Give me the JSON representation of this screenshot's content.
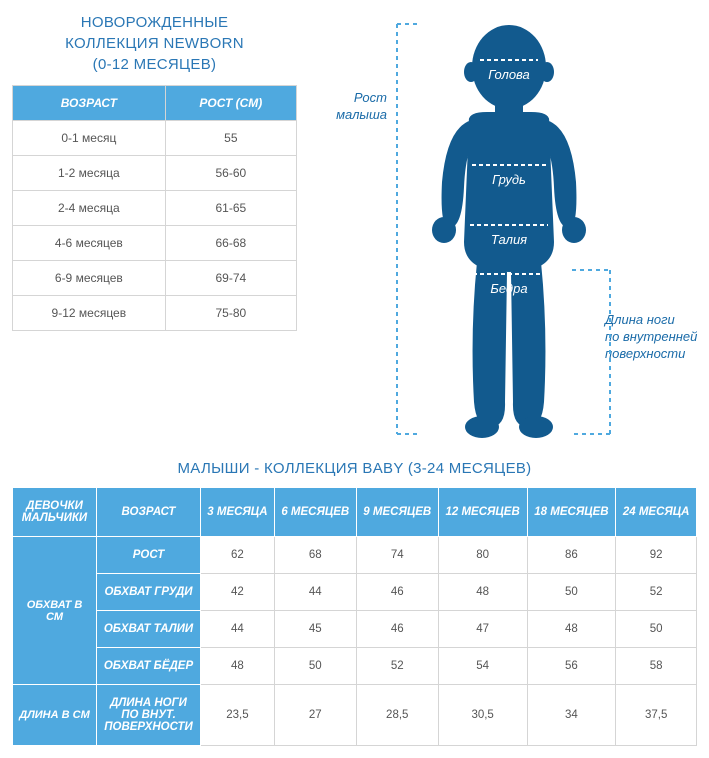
{
  "colors": {
    "accent": "#4fa9df",
    "heading": "#2a77b5",
    "baby_fill": "#125a8e",
    "dash": "#4fa9df",
    "border": "#d5d5d5",
    "text": "#555555"
  },
  "newborn": {
    "title_line1": "НОВОРОЖДЕННЫЕ",
    "title_line2": "КОЛЛЕКЦИЯ NEWBORN",
    "title_line3": "(0-12 МЕСЯЦЕВ)",
    "columns": {
      "age": "ВОЗРАСТ",
      "height": "РОСТ (СМ)"
    },
    "rows": [
      {
        "age": "0-1 месяц",
        "height": "55"
      },
      {
        "age": "1-2 месяца",
        "height": "56-60"
      },
      {
        "age": "2-4 месяца",
        "height": "61-65"
      },
      {
        "age": "4-6 месяцев",
        "height": "66-68"
      },
      {
        "age": "6-9 месяцев",
        "height": "69-74"
      },
      {
        "age": "9-12 месяцев",
        "height": "75-80"
      }
    ]
  },
  "diagram": {
    "height_label_l1": "Рост",
    "height_label_l2": "малыша",
    "leg_label_l1": "Длина ноги",
    "leg_label_l2": "по внутренней",
    "leg_label_l3": "поверхности",
    "head": "Голова",
    "chest": "Грудь",
    "waist": "Талия",
    "hips": "Бедра"
  },
  "baby": {
    "title": "МАЛЫШИ - КОЛЛЕКЦИЯ BABY (3-24 МЕСЯЦЕВ)",
    "corner_l1": "ДЕВОЧКИ",
    "corner_l2": "МАЛЬЧИКИ",
    "age_header": "ВОЗРАСТ",
    "age_columns": [
      "3 МЕСЯЦА",
      "6 МЕСЯЦЕВ",
      "9 МЕСЯЦЕВ",
      "12 МЕСЯЦЕВ",
      "18 МЕСЯЦЕВ",
      "24 МЕСЯЦА"
    ],
    "group1_label": "ОБХВАТ В СМ",
    "group1_rows": [
      {
        "label": "РОСТ",
        "values": [
          "62",
          "68",
          "74",
          "80",
          "86",
          "92"
        ]
      },
      {
        "label": "ОБХВАТ ГРУДИ",
        "values": [
          "42",
          "44",
          "46",
          "48",
          "50",
          "52"
        ]
      },
      {
        "label": "ОБХВАТ ТАЛИИ",
        "values": [
          "44",
          "45",
          "46",
          "47",
          "48",
          "50"
        ]
      },
      {
        "label": "ОБХВАТ БЁДЕР",
        "values": [
          "48",
          "50",
          "52",
          "54",
          "56",
          "58"
        ]
      }
    ],
    "group2_label": "ДЛИНА В СМ",
    "group2_rows": [
      {
        "label": "ДЛИНА НОГИ ПО ВНУТ. ПОВЕРХНОСТИ",
        "values": [
          "23,5",
          "27",
          "28,5",
          "30,5",
          "34",
          "37,5"
        ]
      }
    ]
  }
}
